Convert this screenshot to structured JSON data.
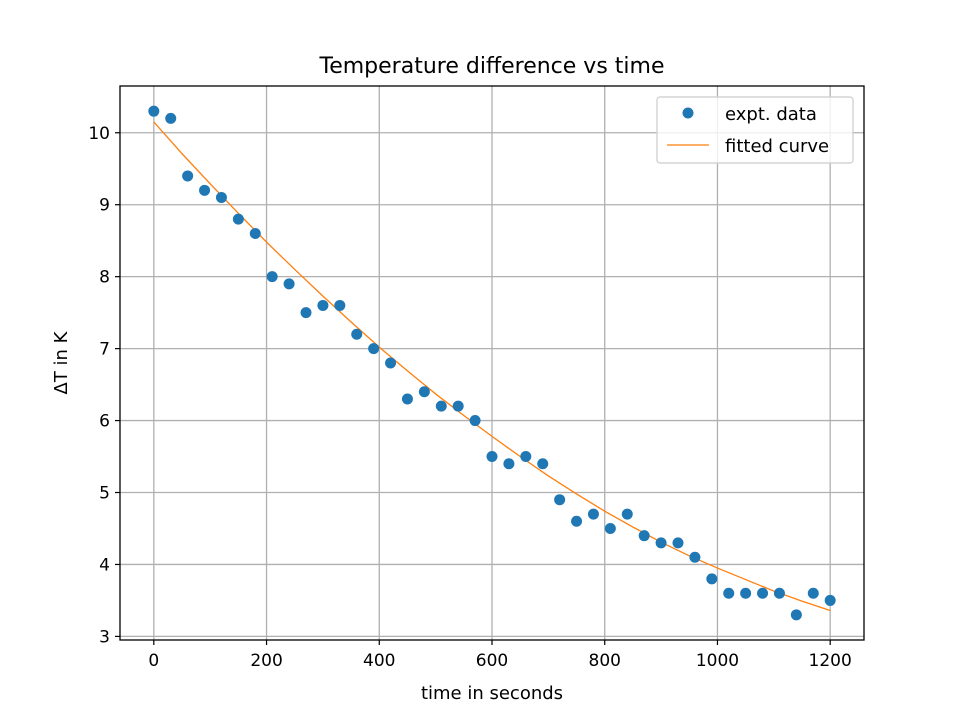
{
  "chart_data": {
    "type": "scatter",
    "title": "Temperature difference vs time",
    "xlabel": "time in seconds",
    "ylabel": "ΔT in K",
    "xlim": [
      -60,
      1260
    ],
    "ylim": [
      2.95,
      10.65
    ],
    "xticks": [
      0,
      200,
      400,
      600,
      800,
      1000,
      1200
    ],
    "yticks": [
      3,
      4,
      5,
      6,
      7,
      8,
      9,
      10
    ],
    "grid": true,
    "legend_position": "top-right",
    "series": [
      {
        "name": "expt. data",
        "kind": "scatter",
        "color": "#1f77b4",
        "x": [
          0,
          30,
          60,
          90,
          120,
          150,
          180,
          210,
          240,
          270,
          300,
          330,
          360,
          390,
          420,
          450,
          480,
          510,
          540,
          570,
          600,
          630,
          660,
          690,
          720,
          750,
          780,
          810,
          840,
          870,
          900,
          930,
          960,
          990,
          1020,
          1050,
          1080,
          1110,
          1140,
          1170,
          1200
        ],
        "y": [
          10.3,
          10.2,
          9.4,
          9.2,
          9.1,
          8.8,
          8.6,
          8.0,
          7.9,
          7.5,
          7.6,
          7.6,
          7.2,
          7.0,
          6.8,
          6.3,
          6.4,
          6.2,
          6.2,
          6.0,
          5.5,
          5.4,
          5.5,
          5.4,
          4.9,
          4.6,
          4.7,
          4.5,
          4.7,
          4.4,
          4.3,
          4.3,
          4.1,
          3.8,
          3.6,
          3.6,
          3.6,
          3.6,
          3.3,
          3.6,
          3.5
        ]
      },
      {
        "name": "fitted curve",
        "kind": "line",
        "color": "#ff7f0e",
        "x": [
          0,
          50,
          100,
          150,
          200,
          250,
          300,
          350,
          400,
          450,
          500,
          550,
          600,
          650,
          700,
          750,
          800,
          850,
          900,
          950,
          1000,
          1050,
          1100,
          1150,
          1200
        ],
        "y": [
          10.15,
          9.71,
          9.29,
          8.88,
          8.48,
          8.1,
          7.73,
          7.37,
          7.02,
          6.69,
          6.37,
          6.07,
          5.78,
          5.5,
          5.23,
          4.98,
          4.74,
          4.52,
          4.31,
          4.12,
          3.95,
          3.79,
          3.63,
          3.49,
          3.36
        ]
      }
    ]
  }
}
